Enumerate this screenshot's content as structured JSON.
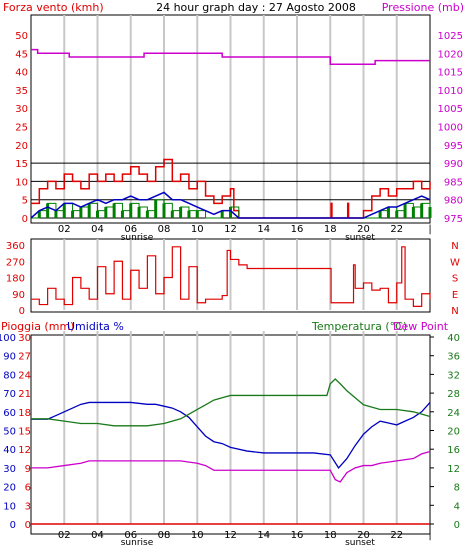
{
  "header": {
    "left_title": "Forza vento (kmh)",
    "center_title": "24 hour graph day : 27 Agosto 2008",
    "right_title": "Pressione (mb)"
  },
  "colors": {
    "wind": "#e00000",
    "gust_fill": "#008000",
    "wind_avg": "#0000c0",
    "pressure": "#cc00cc",
    "humidity": "#0000c0",
    "temperature": "#1a7a1a",
    "dew_point": "#cc00cc",
    "rain": "#e00000",
    "grid_vertical": "#c8c8c8",
    "grid_horizontal": "#000000"
  },
  "x_axis": {
    "tick_labels": [
      "02",
      "04",
      "06",
      "08",
      "10",
      "12",
      "14",
      "16",
      "18",
      "20",
      "22",
      "|"
    ],
    "sunrise_label": "sunrise",
    "sunset_label": "sunset"
  },
  "chart_data": [
    {
      "type": "line",
      "title": "24 hour graph day : 27 Agosto 2008",
      "left_axis": {
        "label": "Forza vento (kmh)",
        "ticks": [
          "0",
          "5",
          "10",
          "15",
          "20",
          "25",
          "30",
          "35",
          "40",
          "45",
          "50"
        ],
        "ylim": [
          0,
          50
        ]
      },
      "right_axis": {
        "label": "Pressione (mb)",
        "ticks": [
          "975",
          "980",
          "985",
          "990",
          "995",
          "1000",
          "1005",
          "1010",
          "1015",
          "1020",
          "1025"
        ],
        "ylim": [
          975,
          1025
        ]
      },
      "x_hours": [
        0,
        24
      ],
      "series": [
        {
          "name": "Pressione",
          "axis": "right",
          "x": [
            0,
            0.4,
            0.4,
            2.3,
            2.3,
            6.8,
            6.8,
            11.5,
            11.5,
            18,
            18,
            20.7,
            20.7,
            24
          ],
          "y": [
            1021,
            1021,
            1020,
            1020,
            1019,
            1019,
            1020,
            1020,
            1019,
            1019,
            1017,
            1017,
            1018,
            1018
          ]
        },
        {
          "name": "Forza vento",
          "axis": "left",
          "style": "gust",
          "x": [
            0,
            0.5,
            1,
            1.5,
            2,
            2.5,
            3,
            3.5,
            4,
            4.5,
            5,
            5.5,
            6,
            6.5,
            7,
            7.5,
            8,
            8.5,
            9,
            9.5,
            10,
            10.5,
            11,
            11.5,
            12,
            12.2,
            12.5,
            18,
            18.05,
            18.1,
            19,
            19.05,
            19.1,
            20,
            20.5,
            21,
            21.5,
            22,
            22.5,
            23,
            23.5,
            24
          ],
          "y": [
            4,
            8,
            10,
            8,
            12,
            10,
            8,
            12,
            10,
            12,
            10,
            12,
            14,
            12,
            10,
            14,
            16,
            10,
            12,
            8,
            10,
            6,
            4,
            6,
            8,
            2,
            0,
            0,
            4,
            0,
            0,
            4,
            0,
            2,
            6,
            8,
            6,
            8,
            8,
            10,
            8,
            10
          ]
        },
        {
          "name": "Media vento",
          "axis": "left",
          "style": "avg",
          "x": [
            0,
            0.5,
            1,
            1.5,
            2,
            2.5,
            3,
            3.5,
            4,
            4.5,
            5,
            5.5,
            6,
            6.5,
            7,
            7.5,
            8,
            8.5,
            9,
            9.5,
            10,
            10.5,
            11,
            11.5,
            12,
            12.5,
            18,
            19,
            20,
            20.5,
            21,
            21.5,
            22,
            22.5,
            23,
            23.5,
            24
          ],
          "y": [
            0,
            2,
            3,
            2,
            4,
            4,
            3,
            4,
            5,
            4,
            5,
            5,
            6,
            5,
            5,
            6,
            7,
            5,
            5,
            4,
            3,
            2,
            1,
            2,
            2,
            0,
            0,
            0,
            0,
            1,
            2,
            3,
            3,
            4,
            5,
            6,
            5
          ]
        },
        {
          "name": "Raffica bassa",
          "axis": "left",
          "style": "green",
          "x": [
            0,
            0.5,
            1,
            1.5,
            2,
            2.5,
            3,
            3.5,
            4,
            4.5,
            5,
            5.5,
            6,
            6.5,
            7,
            7.5,
            8,
            8.5,
            9,
            9.5,
            10,
            10.5,
            11,
            11.5,
            12,
            12.5,
            20.5,
            21,
            21.5,
            22,
            22.5,
            23,
            23.5,
            24
          ],
          "y": [
            0,
            2,
            4,
            2,
            4,
            2,
            3,
            4,
            2,
            3,
            4,
            2,
            4,
            3,
            2,
            5,
            4,
            2,
            3,
            2,
            2,
            0,
            0,
            2,
            3,
            0,
            0,
            2,
            3,
            2,
            4,
            3,
            4,
            3
          ]
        }
      ]
    },
    {
      "type": "line",
      "left_axis": {
        "ticks": [
          "0",
          "90",
          "180",
          "270",
          "360"
        ],
        "ylim": [
          0,
          360
        ]
      },
      "right_axis": {
        "ticks": [
          "N",
          "W",
          "S",
          "E",
          "N"
        ]
      },
      "series": [
        {
          "name": "Direzione vento",
          "x": [
            0,
            0.5,
            1,
            1.5,
            2,
            2.5,
            3,
            3.5,
            4,
            4.5,
            5,
            5.5,
            6,
            6.5,
            7,
            7.5,
            8,
            8.5,
            9,
            9.5,
            10,
            10.5,
            11,
            11.5,
            11.8,
            12,
            12.5,
            13,
            18,
            18.05,
            19,
            19.4,
            19.5,
            20,
            20.5,
            21,
            21.5,
            22,
            22.3,
            22.5,
            23,
            23.5,
            24
          ],
          "y": [
            60,
            30,
            120,
            60,
            30,
            180,
            120,
            60,
            240,
            90,
            270,
            60,
            220,
            120,
            300,
            90,
            180,
            350,
            60,
            240,
            40,
            60,
            60,
            80,
            330,
            280,
            250,
            230,
            230,
            40,
            40,
            250,
            120,
            150,
            110,
            120,
            40,
            150,
            350,
            60,
            20,
            90,
            60
          ]
        }
      ]
    },
    {
      "type": "line",
      "left_axis_rain": {
        "label": "Pioggia (mm)",
        "ticks": [
          "0",
          "3",
          "6",
          "9",
          "12",
          "15",
          "18",
          "21",
          "24",
          "27",
          "30"
        ],
        "ylim": [
          0,
          30
        ]
      },
      "left_axis_humidity": {
        "label": "Umidita %",
        "ticks": [
          "0",
          "10",
          "20",
          "30",
          "40",
          "50",
          "60",
          "70",
          "80",
          "90",
          "100"
        ],
        "ylim": [
          0,
          100
        ]
      },
      "right_axis": {
        "label": "Temperatura (°C)",
        "ticks": [
          "0",
          "4",
          "8",
          "12",
          "16",
          "20",
          "24",
          "28",
          "32",
          "36",
          "40"
        ],
        "ylim": [
          0,
          40
        ]
      },
      "dew_label": "Dew Point",
      "series": [
        {
          "name": "Umidita %",
          "axis": "humidity",
          "x": [
            0,
            1,
            1.5,
            2,
            2.5,
            3,
            3.5,
            4,
            5,
            6,
            7,
            7.5,
            8,
            8.5,
            9,
            9.5,
            10,
            10.5,
            11,
            11.5,
            12,
            13,
            14,
            15,
            16,
            17,
            18,
            18.5,
            19,
            19.5,
            20,
            20.5,
            21,
            21.5,
            22,
            22.5,
            23,
            23.5,
            24
          ],
          "y": [
            56,
            56,
            58,
            60,
            62,
            64,
            65,
            65,
            65,
            65,
            64,
            64,
            63,
            62,
            60,
            57,
            52,
            47,
            44,
            43,
            41,
            39,
            38,
            38,
            38,
            38,
            37,
            30,
            35,
            42,
            48,
            52,
            55,
            54,
            53,
            55,
            57,
            60,
            65
          ]
        },
        {
          "name": "Temperatura (°C)",
          "axis": "temperature",
          "x": [
            0,
            1,
            2,
            3,
            4,
            5,
            6,
            7,
            8,
            8.5,
            9,
            9.5,
            10,
            10.5,
            11,
            11.5,
            12,
            13,
            14,
            15,
            16,
            17,
            17.8,
            18,
            18.3,
            18.6,
            19,
            19.5,
            20,
            20.5,
            21,
            22,
            23,
            24
          ],
          "y": [
            22.5,
            22.5,
            22,
            21.5,
            21.5,
            21,
            21,
            21,
            21.5,
            22,
            22.5,
            23.5,
            24.5,
            25.5,
            26.5,
            27,
            27.5,
            27.5,
            27.5,
            27.5,
            27.5,
            27.5,
            27.5,
            30,
            31,
            30,
            28.5,
            27,
            25.5,
            25,
            24.5,
            24.5,
            24,
            23
          ]
        },
        {
          "name": "Dew Point",
          "axis": "temperature",
          "x": [
            0,
            1,
            2,
            3,
            3.5,
            4,
            5,
            6,
            7,
            8,
            9,
            10,
            10.5,
            11,
            11.5,
            12,
            13,
            14,
            15,
            16,
            17,
            18,
            18.3,
            18.6,
            19,
            19.5,
            20,
            20.5,
            21,
            22,
            23,
            23.5,
            24
          ],
          "y": [
            12,
            12,
            12.5,
            13,
            13.5,
            13.5,
            13.5,
            13.5,
            13.5,
            13.5,
            13.5,
            13,
            12.5,
            11.5,
            11.5,
            11.5,
            11.5,
            11.5,
            11.5,
            11.5,
            11.5,
            11.5,
            9.5,
            9,
            11,
            12,
            12.5,
            12.5,
            13,
            13.5,
            14,
            15,
            15.5
          ]
        },
        {
          "name": "Pioggia (mm)",
          "axis": "rain",
          "x": [
            0,
            24
          ],
          "y": [
            0,
            0
          ]
        }
      ]
    }
  ]
}
